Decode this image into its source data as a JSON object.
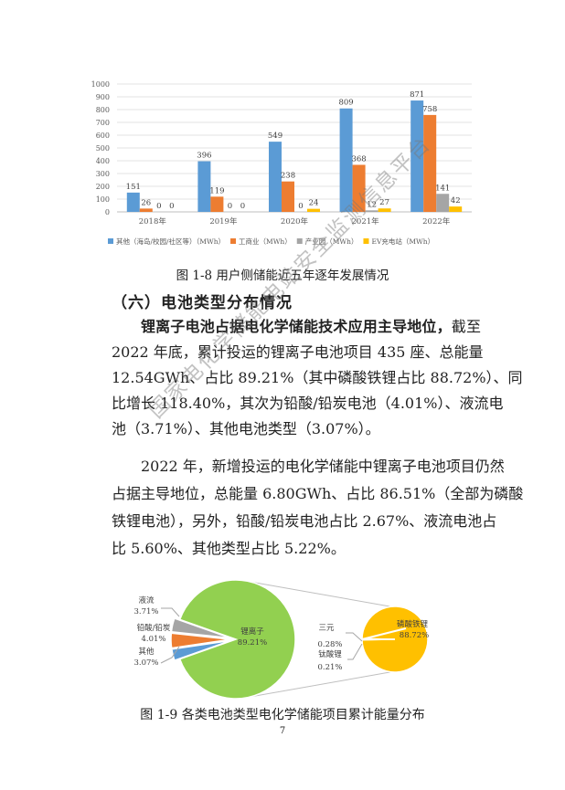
{
  "chart_data": [
    {
      "type": "bar",
      "categories": [
        "2018年",
        "2019年",
        "2020年",
        "2021年",
        "2022年"
      ],
      "ylim": [
        0,
        1000
      ],
      "yticks": [
        0,
        100,
        200,
        300,
        400,
        500,
        600,
        700,
        800,
        900,
        1000
      ],
      "grid": true,
      "legend_position": "bottom",
      "series": [
        {
          "name": "其他（海岛/校园/社区等）（MWh）",
          "color": "#5b9bd5",
          "values": [
            151,
            396,
            549,
            809,
            871
          ]
        },
        {
          "name": "工商业（MWh）",
          "color": "#ed7d31",
          "values": [
            26,
            119,
            238,
            368,
            758
          ]
        },
        {
          "name": "产业园（MWh）",
          "color": "#a5a5a5",
          "values": [
            0,
            0,
            0,
            12,
            141
          ]
        },
        {
          "name": "EV充电站（MWh）",
          "color": "#ffc000",
          "values": [
            0,
            0,
            24,
            27,
            42
          ]
        }
      ]
    },
    {
      "type": "pie",
      "slices": [
        {
          "label": "锂离子",
          "value_label": "89.21%",
          "value": 89.21,
          "color": "#92d050"
        },
        {
          "label": "液流",
          "value_label": "3.71%",
          "value": 3.71,
          "color": "#a5a5a5"
        },
        {
          "label": "铅酸/铅炭",
          "value_label": "4.01%",
          "value": 4.01,
          "color": "#ed7d31"
        },
        {
          "label": "其他",
          "value_label": "3.07%",
          "value": 3.07,
          "color": "#5b9bd5"
        }
      ],
      "sub_pie": [
        {
          "label": "磷酸铁锂",
          "value_label": "88.72%",
          "value": 88.72,
          "color": "#ffc000"
        },
        {
          "label": "三元",
          "value_label": "0.28%",
          "value": 0.28,
          "color": "#ffc000"
        },
        {
          "label": "钛酸锂",
          "value_label": "0.21%",
          "value": 0.21,
          "color": "#ffc000"
        }
      ]
    }
  ],
  "fig1_caption": "图 1-8 用户侧储能近五年逐年发展情况",
  "section_heading": "（六）电池类型分布情况",
  "para1": {
    "bold_lead": "锂离子电池占据电化学储能技术应用主导地位，",
    "line1_rest": "截至",
    "lines": [
      "2022 年底，累计投运的锂离子电池项目 435 座、总能量",
      "12.54GWh、占比 89.21%（其中磷酸铁锂占比 88.72%）、同",
      "比增长 118.40%，其次为铅酸/铅炭电池（4.01%）、液流电",
      "池（3.71%）、其他电池类型（3.07%）。"
    ]
  },
  "para2": {
    "lines": [
      "2022 年，新增投运的电化学储能中锂离子电池项目仍然",
      "占据主导地位，总能量 6.80GWh、占比 86.51%（全部为磷酸",
      "铁锂电池），另外，铅酸/铅炭电池占比 2.67%、液流电池占",
      "比 5.60%、其他类型占比 5.22%。"
    ]
  },
  "fig2_caption": "图 1-9 各类电池类型电化学储能项目累计能量分布",
  "page_number": "7",
  "watermark": "国家电化学储能电站安全监测信息平台"
}
